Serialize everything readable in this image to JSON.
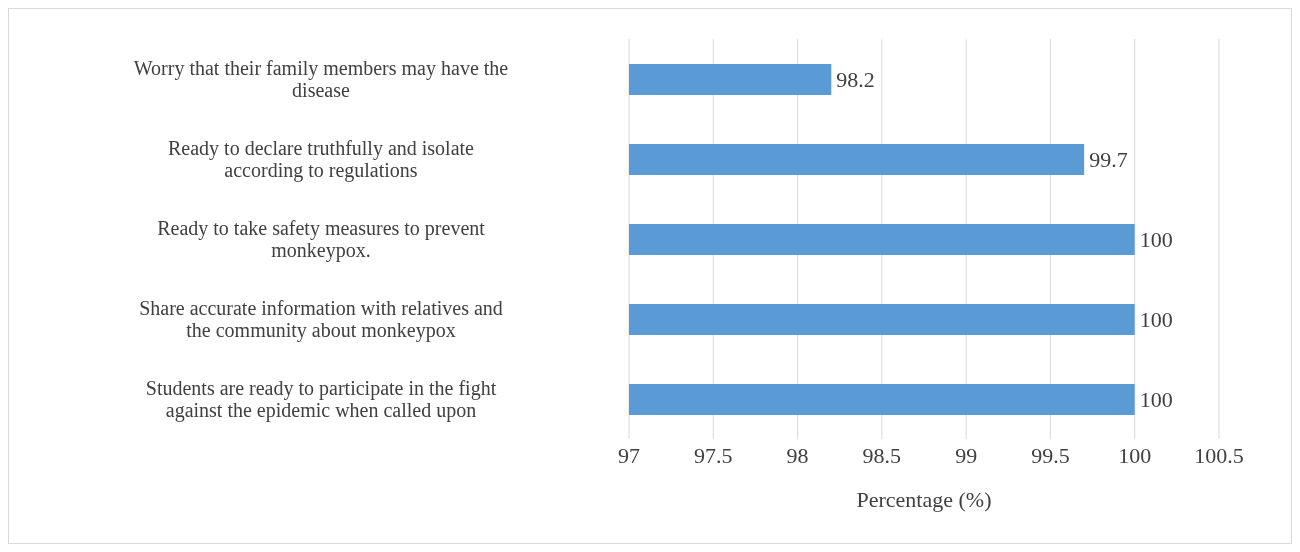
{
  "chart_data": {
    "type": "bar",
    "orientation": "horizontal",
    "xlabel": "Percentage (%)",
    "categories": [
      "Worry that their family members may have the disease",
      "Ready to declare truthfully and isolate according to regulations",
      "Ready to take safety measures to prevent monkeypox.",
      "Share accurate information with relatives and the community about monkeypox",
      "Students are ready to participate in the fight against the epidemic when called upon"
    ],
    "values": [
      98.2,
      99.7,
      100,
      100,
      100
    ],
    "color": "#5b9bd5",
    "xlim": [
      97,
      100.5
    ],
    "xticks": [
      97,
      97.5,
      98,
      98.5,
      99,
      99.5,
      100,
      100.5
    ],
    "grid": "x",
    "data_labels": true
  }
}
